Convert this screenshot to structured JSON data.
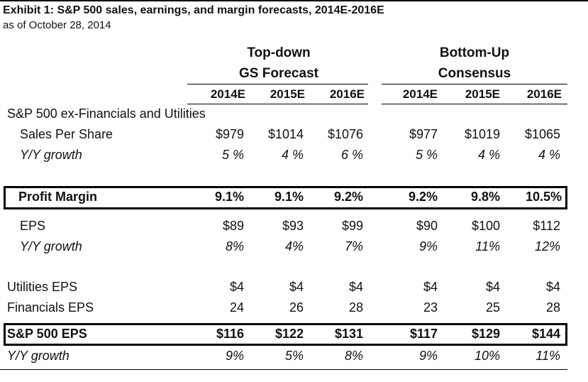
{
  "title": "Exhibit 1: S&P 500 sales, earnings, and margin forecasts, 2014E-2016E",
  "subtitle": "as of October 28, 2014",
  "groups": {
    "topdown_line1": "Top-down",
    "topdown_line2": "GS Forecast",
    "bottomup_line1": "Bottom-Up",
    "bottomup_line2": "Consensus"
  },
  "columns": [
    "2014E",
    "2015E",
    "2016E",
    "2014E",
    "2015E",
    "2016E"
  ],
  "section_label": "S&P 500 ex-Financials and Utilities",
  "rows": [
    {
      "label": "Sales Per Share",
      "values": [
        "$979",
        "$1014",
        "$1076",
        "$977",
        "$1019",
        "$1065"
      ]
    },
    {
      "label": "Y/Y growth",
      "values": [
        "5 %",
        "4 %",
        "6 %",
        "5 %",
        "4 %",
        "4 %"
      ]
    },
    {
      "label": "Profit Margin",
      "values": [
        "9.1%",
        "9.1%",
        "9.2%",
        "9.2%",
        "9.8%",
        "10.5%"
      ]
    },
    {
      "label": "EPS",
      "values": [
        "$89",
        "$93",
        "$99",
        "$90",
        "$100",
        "$112"
      ]
    },
    {
      "label": "Y/Y growth",
      "values": [
        "8%",
        "4%",
        "7%",
        "9%",
        "11%",
        "12%"
      ]
    },
    {
      "label": "Utilities EPS",
      "values": [
        "$4",
        "$4",
        "$4",
        "$4",
        "$4",
        "$4"
      ]
    },
    {
      "label": "Financials EPS",
      "values": [
        "24",
        "26",
        "28",
        "23",
        "25",
        "28"
      ]
    },
    {
      "label": "S&P 500 EPS",
      "values": [
        "$116",
        "$122",
        "$131",
        "$117",
        "$129",
        "$144"
      ]
    },
    {
      "label": "Y/Y growth",
      "values": [
        "9%",
        "5%",
        "8%",
        "9%",
        "10%",
        "11%"
      ]
    }
  ]
}
